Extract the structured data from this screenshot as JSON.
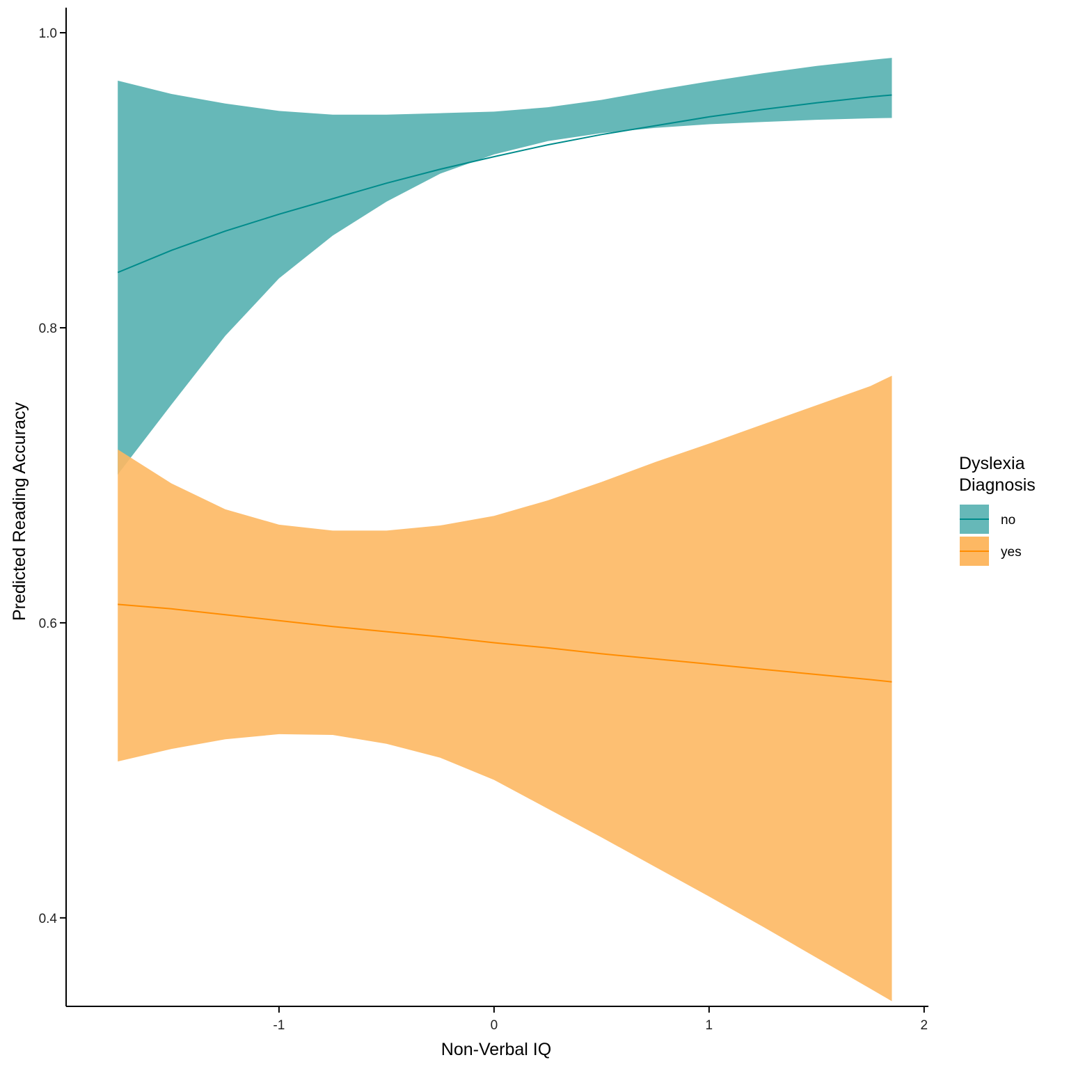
{
  "chart_data": {
    "type": "line",
    "xlabel": "Non-Verbal IQ",
    "ylabel": "Predicted Reading Accuracy",
    "xlim": [
      -1.99,
      2.02
    ],
    "ylim": [
      0.34,
      1.017
    ],
    "xticks": [
      -1,
      0,
      1,
      2
    ],
    "xtick_labels": [
      "-1",
      "0",
      "1",
      "2"
    ],
    "yticks": [
      0.4,
      0.6,
      0.8,
      1.0
    ],
    "ytick_labels": [
      "0.4",
      "0.6",
      "0.8",
      "1.0"
    ],
    "grid": false,
    "legend": {
      "title_lines": [
        "Dyslexia",
        "Diagnosis"
      ],
      "position": "right"
    },
    "x": [
      -1.75,
      -1.5,
      -1.25,
      -1.0,
      -0.75,
      -0.5,
      -0.25,
      0.0,
      0.25,
      0.5,
      0.75,
      1.0,
      1.25,
      1.5,
      1.75,
      1.85
    ],
    "series": [
      {
        "name": "no",
        "color": "#008B8B",
        "fill_color": "#66B8B8",
        "values": [
          0.8375,
          0.8525,
          0.8655,
          0.877,
          0.8875,
          0.898,
          0.9075,
          0.916,
          0.924,
          0.931,
          0.937,
          0.943,
          0.948,
          0.9525,
          0.9565,
          0.9578
        ],
        "lower": [
          0.7005,
          0.748,
          0.7945,
          0.8335,
          0.8625,
          0.8855,
          0.9045,
          0.9175,
          0.9265,
          0.932,
          0.9355,
          0.938,
          0.9395,
          0.941,
          0.942,
          0.9422
        ],
        "upper": [
          0.9675,
          0.9585,
          0.952,
          0.947,
          0.9445,
          0.9445,
          0.9455,
          0.9465,
          0.9495,
          0.9545,
          0.961,
          0.967,
          0.9725,
          0.9775,
          0.9815,
          0.983
        ]
      },
      {
        "name": "yes",
        "color": "#FF8C00",
        "fill_color": "#FDB863",
        "values": [
          0.6125,
          0.6095,
          0.6055,
          0.6015,
          0.5975,
          0.594,
          0.5905,
          0.5865,
          0.583,
          0.579,
          0.5755,
          0.572,
          0.5685,
          0.565,
          0.5615,
          0.56
        ],
        "lower": [
          0.506,
          0.5145,
          0.521,
          0.5245,
          0.524,
          0.518,
          0.5085,
          0.4935,
          0.474,
          0.4545,
          0.4345,
          0.4145,
          0.394,
          0.373,
          0.352,
          0.3435
        ],
        "upper": [
          0.7175,
          0.6945,
          0.677,
          0.6665,
          0.6625,
          0.6625,
          0.666,
          0.6725,
          0.683,
          0.6955,
          0.709,
          0.7215,
          0.7345,
          0.7475,
          0.7605,
          0.7675
        ]
      }
    ]
  }
}
